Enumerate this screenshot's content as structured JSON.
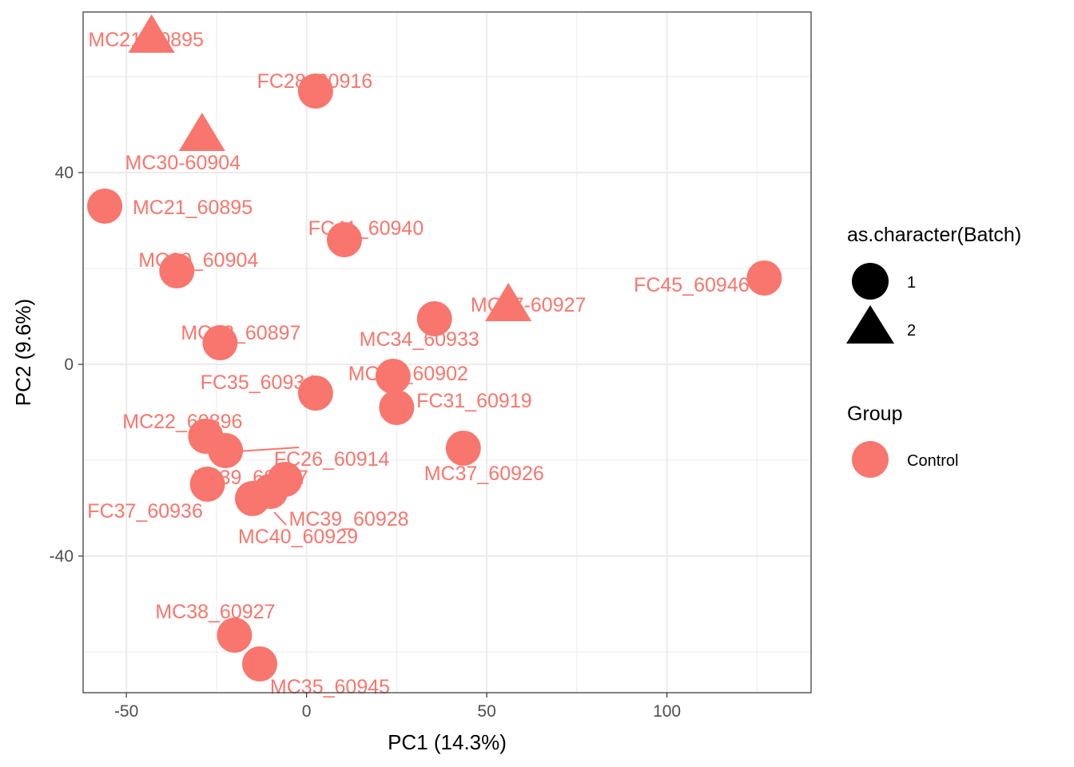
{
  "chart_data": {
    "type": "scatter",
    "xlabel": "PC1 (14.3%)",
    "ylabel": "PC2 (9.6%)",
    "xlim": [
      -62,
      140
    ],
    "ylim": [
      -68.5,
      73.5
    ],
    "x_ticks": [
      -50,
      0,
      50,
      100
    ],
    "y_ticks": [
      -40,
      0,
      40
    ],
    "grid": true,
    "point_color": "#F8766D",
    "points": [
      {
        "label": "MC21-60895",
        "x": -43,
        "y": 68,
        "batch": "2",
        "group": "Control"
      },
      {
        "label": "FC28_60916",
        "x": 2.5,
        "y": 57,
        "batch": "1",
        "group": "Control"
      },
      {
        "label": "MC30-60904",
        "x": -29,
        "y": 47.5,
        "batch": "2",
        "group": "Control"
      },
      {
        "label": "MC21_60895",
        "x": -56,
        "y": 33,
        "batch": "1",
        "group": "Control"
      },
      {
        "label": "FC41_60940",
        "x": 10.5,
        "y": 26,
        "batch": "1",
        "group": "Control"
      },
      {
        "label": "MC30_60904",
        "x": -36,
        "y": 19.5,
        "batch": "1",
        "group": "Control"
      },
      {
        "label": "FC45_60946",
        "x": 127,
        "y": 18,
        "batch": "1",
        "group": "Control"
      },
      {
        "label": "MC37-60927",
        "x": 56,
        "y": 12,
        "batch": "2",
        "group": "Control"
      },
      {
        "label": "MC34_60933",
        "x": 35.5,
        "y": 9.5,
        "batch": "1",
        "group": "Control"
      },
      {
        "label": "MC23_60897",
        "x": -24,
        "y": 4.5,
        "batch": "1",
        "group": "Control"
      },
      {
        "label": "MC28_60902",
        "x": 24,
        "y": -2.5,
        "batch": "1",
        "group": "Control"
      },
      {
        "label": "FC35_60934",
        "x": 2.5,
        "y": -6,
        "batch": "1",
        "group": "Control"
      },
      {
        "label": "FC31_60919",
        "x": 25,
        "y": -9,
        "batch": "1",
        "group": "Control"
      },
      {
        "label": "MC22_60896",
        "x": -28,
        "y": -15,
        "batch": "1",
        "group": "Control"
      },
      {
        "label": "FC26_60914",
        "x": -22.5,
        "y": -18,
        "batch": "1",
        "group": "Control"
      },
      {
        "label": "MC37_60926",
        "x": 43.5,
        "y": -17.5,
        "batch": "1",
        "group": "Control"
      },
      {
        "label": "FC39_60927",
        "x": -6,
        "y": -24,
        "batch": "1",
        "group": "Control"
      },
      {
        "label": "FC37_60936",
        "x": -27.5,
        "y": -25,
        "batch": "1",
        "group": "Control"
      },
      {
        "label": "MC39_60928",
        "x": -10,
        "y": -26.5,
        "batch": "1",
        "group": "Control"
      },
      {
        "label": "MC40_60929",
        "x": -15,
        "y": -28,
        "batch": "1",
        "group": "Control"
      },
      {
        "label": "MC38_60927",
        "x": -20,
        "y": -56.5,
        "batch": "1",
        "group": "Control"
      },
      {
        "label": "MC35_60945",
        "x": -13,
        "y": -62.5,
        "batch": "1",
        "group": "Control"
      }
    ],
    "legend": {
      "position": "right",
      "shape_title": "as.character(Batch)",
      "shape_items": [
        "1",
        "2"
      ],
      "color_title": "Group",
      "color_items": [
        "Control"
      ]
    }
  }
}
